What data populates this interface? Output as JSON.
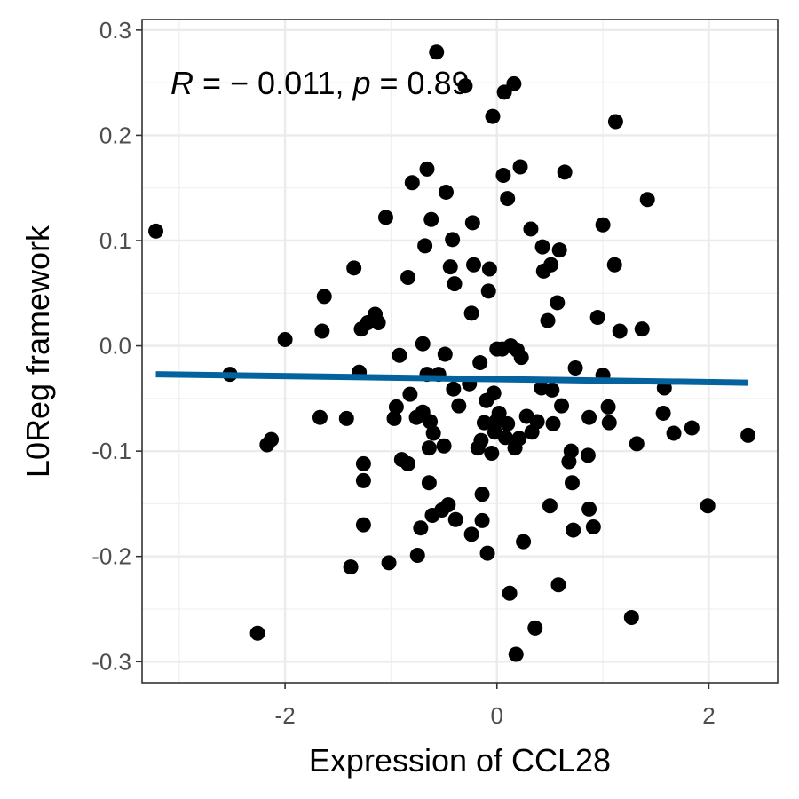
{
  "chart_data": {
    "type": "scatter",
    "xlabel": "Expression of CCL28",
    "ylabel": "L0Reg framework",
    "xlim": [
      -3.35,
      2.65
    ],
    "ylim": [
      -0.32,
      0.31
    ],
    "x_ticks": [
      -2,
      0,
      2
    ],
    "x_tick_labels": [
      "-2",
      "0",
      "2"
    ],
    "y_ticks": [
      -0.3,
      -0.2,
      -0.1,
      0.0,
      0.1,
      0.2,
      0.3
    ],
    "y_tick_labels": [
      "-0.3",
      "-0.2",
      "-0.1",
      "0.0",
      "0.1",
      "0.2",
      "0.3"
    ],
    "grid": true,
    "annotation": {
      "r_symbol": "R",
      "r_text": " = − 0.011, ",
      "p_symbol": "p",
      "p_text": " = 0.89"
    },
    "points_color": "#000000",
    "line_color": "#04639e",
    "regression": {
      "x": [
        -3.22,
        2.37
      ],
      "y": [
        -0.027,
        -0.035
      ]
    },
    "points": [
      [
        -3.22,
        0.109
      ],
      [
        -2.52,
        -0.027
      ],
      [
        -2.26,
        -0.273
      ],
      [
        -2.17,
        -0.094
      ],
      [
        -2.13,
        -0.089
      ],
      [
        -2.0,
        0.006
      ],
      [
        -1.67,
        -0.068
      ],
      [
        -1.65,
        0.014
      ],
      [
        -1.63,
        0.047
      ],
      [
        -1.42,
        -0.069
      ],
      [
        -1.38,
        -0.21
      ],
      [
        -1.35,
        0.074
      ],
      [
        -1.3,
        -0.025
      ],
      [
        -1.28,
        0.016
      ],
      [
        -1.26,
        -0.112
      ],
      [
        -1.26,
        -0.128
      ],
      [
        -1.26,
        -0.17
      ],
      [
        -1.22,
        0.022
      ],
      [
        -1.15,
        0.03
      ],
      [
        -1.12,
        0.022
      ],
      [
        -1.05,
        0.122
      ],
      [
        -1.02,
        -0.206
      ],
      [
        -0.97,
        -0.069
      ],
      [
        -0.95,
        -0.058
      ],
      [
        -0.92,
        -0.009
      ],
      [
        -0.9,
        -0.108
      ],
      [
        -0.84,
        -0.112
      ],
      [
        -0.84,
        0.065
      ],
      [
        -0.82,
        -0.046
      ],
      [
        -0.8,
        0.155
      ],
      [
        -0.76,
        -0.068
      ],
      [
        -0.75,
        -0.199
      ],
      [
        -0.72,
        -0.173
      ],
      [
        -0.7,
        0.002
      ],
      [
        -0.7,
        -0.063
      ],
      [
        -0.68,
        0.095
      ],
      [
        -0.66,
        0.168
      ],
      [
        -0.66,
        -0.027
      ],
      [
        -0.64,
        -0.13
      ],
      [
        -0.64,
        -0.097
      ],
      [
        -0.63,
        -0.072
      ],
      [
        -0.62,
        0.12
      ],
      [
        -0.61,
        -0.161
      ],
      [
        -0.6,
        -0.083
      ],
      [
        -0.57,
        0.279
      ],
      [
        -0.55,
        -0.027
      ],
      [
        -0.52,
        -0.156
      ],
      [
        -0.5,
        -0.095
      ],
      [
        -0.49,
        -0.008
      ],
      [
        -0.48,
        0.146
      ],
      [
        -0.46,
        -0.151
      ],
      [
        -0.44,
        0.075
      ],
      [
        -0.42,
        0.101
      ],
      [
        -0.41,
        -0.041
      ],
      [
        -0.4,
        0.059
      ],
      [
        -0.39,
        -0.165
      ],
      [
        -0.36,
        -0.057
      ],
      [
        -0.3,
        0.247
      ],
      [
        -0.26,
        -0.036
      ],
      [
        -0.24,
        0.031
      ],
      [
        -0.24,
        -0.179
      ],
      [
        -0.23,
        0.117
      ],
      [
        -0.22,
        0.077
      ],
      [
        -0.18,
        -0.097
      ],
      [
        -0.16,
        -0.016
      ],
      [
        -0.15,
        -0.09
      ],
      [
        -0.14,
        -0.141
      ],
      [
        -0.14,
        -0.166
      ],
      [
        -0.12,
        -0.073
      ],
      [
        -0.1,
        -0.052
      ],
      [
        -0.09,
        -0.197
      ],
      [
        -0.08,
        0.052
      ],
      [
        -0.07,
        0.073
      ],
      [
        -0.05,
        -0.102
      ],
      [
        -0.04,
        0.218
      ],
      [
        -0.03,
        -0.045
      ],
      [
        -0.02,
        -0.082
      ],
      [
        -0.01,
        -0.072
      ],
      [
        0.0,
        -0.003
      ],
      [
        0.02,
        -0.064
      ],
      [
        0.05,
        -0.003
      ],
      [
        0.06,
        0.162
      ],
      [
        0.07,
        0.241
      ],
      [
        0.08,
        -0.087
      ],
      [
        0.1,
        0.14
      ],
      [
        0.1,
        -0.074
      ],
      [
        0.12,
        -0.235
      ],
      [
        0.13,
        0.0
      ],
      [
        0.16,
        0.249
      ],
      [
        0.17,
        -0.097
      ],
      [
        0.18,
        -0.293
      ],
      [
        0.19,
        -0.004
      ],
      [
        0.21,
        -0.088
      ],
      [
        0.22,
        0.17
      ],
      [
        0.23,
        -0.011
      ],
      [
        0.25,
        -0.186
      ],
      [
        0.28,
        -0.067
      ],
      [
        0.32,
        0.111
      ],
      [
        0.33,
        -0.082
      ],
      [
        0.36,
        -0.268
      ],
      [
        0.38,
        -0.072
      ],
      [
        0.42,
        -0.04
      ],
      [
        0.43,
        0.094
      ],
      [
        0.44,
        0.071
      ],
      [
        0.48,
        0.024
      ],
      [
        0.5,
        -0.152
      ],
      [
        0.51,
        0.077
      ],
      [
        0.52,
        -0.042
      ],
      [
        0.53,
        -0.074
      ],
      [
        0.57,
        0.041
      ],
      [
        0.58,
        -0.227
      ],
      [
        0.59,
        0.091
      ],
      [
        0.61,
        -0.057
      ],
      [
        0.64,
        0.165
      ],
      [
        0.68,
        -0.11
      ],
      [
        0.7,
        -0.1
      ],
      [
        0.71,
        -0.13
      ],
      [
        0.72,
        -0.175
      ],
      [
        0.74,
        -0.021
      ],
      [
        0.86,
        -0.104
      ],
      [
        0.87,
        -0.068
      ],
      [
        0.87,
        -0.155
      ],
      [
        0.91,
        -0.172
      ],
      [
        0.95,
        0.027
      ],
      [
        1.0,
        0.115
      ],
      [
        1.0,
        -0.028
      ],
      [
        1.05,
        -0.058
      ],
      [
        1.06,
        -0.073
      ],
      [
        1.11,
        0.077
      ],
      [
        1.12,
        0.213
      ],
      [
        1.16,
        0.014
      ],
      [
        1.27,
        -0.258
      ],
      [
        1.32,
        -0.093
      ],
      [
        1.37,
        0.016
      ],
      [
        1.42,
        0.139
      ],
      [
        1.57,
        -0.064
      ],
      [
        1.58,
        -0.04
      ],
      [
        1.67,
        -0.083
      ],
      [
        1.84,
        -0.078
      ],
      [
        1.99,
        -0.152
      ],
      [
        2.37,
        -0.085
      ]
    ]
  }
}
